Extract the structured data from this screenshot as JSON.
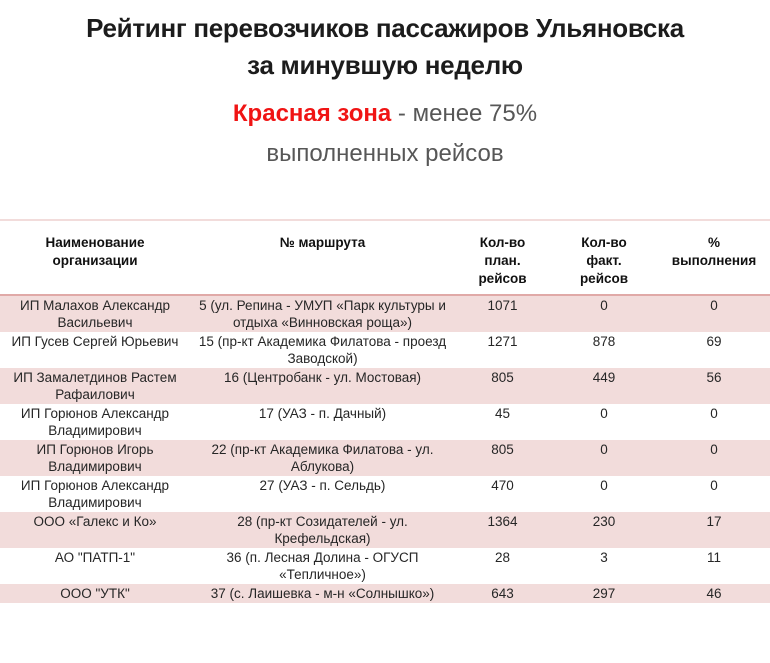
{
  "title": "Рейтинг перевозчиков пассажиров Ульяновска\nза минувшую неделю",
  "subtitle": {
    "highlight": "Красная зона",
    "rest": " - менее 75% выполненных рейсов"
  },
  "colors": {
    "highlight_red": "#f01414",
    "row_stripe_pink": "#f2dcdb",
    "header_rule_pink": "#e0a9a7",
    "subtitle_gray": "#575757",
    "title_black": "#1c1c1c"
  },
  "table": {
    "columns": [
      {
        "label": "Наименование\nорганизации"
      },
      {
        "label": "№ маршрута"
      },
      {
        "label": "Кол-во\nплан.\nрейсов"
      },
      {
        "label": "Кол-во\nфакт.\nрейсов"
      },
      {
        "label": "% выполнения"
      }
    ],
    "rows": [
      {
        "org": "ИП Малахов Александр Васильевич",
        "route": "5 (ул. Репина - УМУП «Парк культуры и отдыха «Винновская роща»)",
        "planned": "1071",
        "actual": "0",
        "percent": "0"
      },
      {
        "org": "ИП Гусев Сергей Юрьевич",
        "route": "15 (пр-кт Академика Филатова - проезд Заводской)",
        "planned": "1271",
        "actual": "878",
        "percent": "69"
      },
      {
        "org": "ИП Замалетдинов Растем Рафаилович",
        "route": "16 (Центробанк - ул. Мостовая)",
        "planned": "805",
        "actual": "449",
        "percent": "56"
      },
      {
        "org": "ИП Горюнов Александр Владимирович",
        "route": "17 (УАЗ - п. Дачный)",
        "planned": "45",
        "actual": "0",
        "percent": "0"
      },
      {
        "org": "ИП Горюнов Игорь Владимирович",
        "route": "22 (пр-кт Академика Филатова - ул. Аблукова)",
        "planned": "805",
        "actual": "0",
        "percent": "0"
      },
      {
        "org": "ИП Горюнов Александр Владимирович",
        "route": "27 (УАЗ - п. Сельдь)",
        "planned": "470",
        "actual": "0",
        "percent": "0"
      },
      {
        "org": "ООО «Галекс и Ко»",
        "route": "28 (пр-кт Созидателей - ул. Крефельдская)",
        "planned": "1364",
        "actual": "230",
        "percent": "17"
      },
      {
        "org": "АО \"ПАТП-1\"",
        "route": "36 (п. Лесная Долина - ОГУСП «Тепличное»)",
        "planned": "28",
        "actual": "3",
        "percent": "11"
      },
      {
        "org": "ООО \"УТК\"",
        "route": "37 (с. Лаишевка - м-н «Солнышко»)",
        "planned": "643",
        "actual": "297",
        "percent": "46"
      }
    ]
  }
}
